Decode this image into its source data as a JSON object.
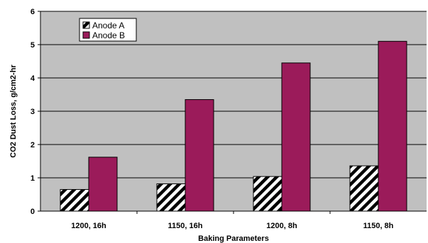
{
  "chart_data": {
    "type": "bar",
    "title": "",
    "xlabel": "Baking Parameters",
    "ylabel": "CO2 Dust Loss, g/cm2-hr",
    "categories": [
      "1200, 16h",
      "1150, 16h",
      "1200, 8h",
      "1150, 8h"
    ],
    "ylim": [
      0,
      6
    ],
    "yticks": [
      "0",
      "1",
      "2",
      "3",
      "4",
      "5",
      "6"
    ],
    "grid": true,
    "legend_position": "top-left",
    "series": [
      {
        "name": "Anode A",
        "values": [
          0.65,
          0.82,
          1.04,
          1.36
        ],
        "pattern": "diagonal-stripes",
        "color": "#000000"
      },
      {
        "name": "Anode B",
        "values": [
          1.62,
          3.35,
          4.45,
          5.1
        ],
        "color": "#9b1b5a"
      }
    ],
    "plot_background": "#c0c0c0"
  }
}
